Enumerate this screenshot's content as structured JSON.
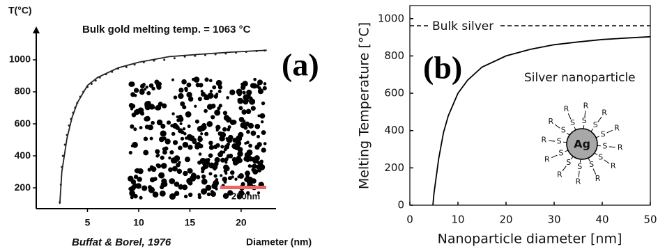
{
  "chart_data": [
    {
      "type": "scatter",
      "title": "Bulk gold melting temp. = 1063 °C",
      "panel_label": "(a)",
      "y_label": "T(°C)",
      "x_label": "Diameter (nm)",
      "source": "Buffat & Borel, 1976",
      "inset_scale": "200nm",
      "xlim": [
        0,
        23
      ],
      "xticks": [
        5,
        10,
        15,
        20
      ],
      "ylim": [
        70,
        1200
      ],
      "yticks": [
        200,
        400,
        600,
        800,
        1000
      ],
      "series": [
        {
          "type": "scatter",
          "color": "#222222",
          "x": [
            2.3,
            2.4,
            2.5,
            2.6,
            2.8,
            3.0,
            3.2,
            3.4,
            3.6,
            3.8,
            4.0,
            4.3,
            4.6,
            5.0,
            5.4,
            5.8,
            6.2,
            6.8,
            7.4,
            8.0,
            8.8,
            9.6,
            10.5,
            11.5,
            12.5,
            13.5,
            14.5,
            15.5,
            16.5,
            17.5,
            18.5,
            19.5,
            20.5,
            21.5,
            22.3
          ],
          "values": [
            110,
            220,
            330,
            400,
            470,
            530,
            590,
            630,
            670,
            700,
            730,
            770,
            800,
            830,
            850,
            870,
            890,
            910,
            925,
            945,
            955,
            970,
            985,
            995,
            1000,
            1010,
            1020,
            1025,
            1030,
            1035,
            1040,
            1045,
            1050,
            1055,
            1058
          ]
        },
        {
          "type": "line",
          "color": "#222222",
          "x": [
            2.3,
            2.5,
            3,
            3.5,
            4,
            5,
            6,
            8,
            10,
            13,
            16,
            19,
            22.5
          ],
          "values": [
            100,
            300,
            510,
            640,
            730,
            840,
            890,
            950,
            985,
            1020,
            1035,
            1048,
            1060
          ]
        }
      ]
    },
    {
      "type": "line",
      "panel_label": "(b)",
      "annotation": "Silver nanoparticle",
      "particle": "Ag",
      "ligand_sulfur": "S",
      "ligand_group": "R",
      "y_label": "Melting Temperature [°C]",
      "x_label": "Nanoparticle diameter [nm]",
      "xlim": [
        0,
        50
      ],
      "xticks": [
        0,
        10,
        20,
        30,
        40,
        50
      ],
      "ylim": [
        0,
        1070
      ],
      "yticks": [
        0,
        200,
        400,
        600,
        800,
        1000
      ],
      "reference_line": {
        "value": 962,
        "label": "Bulk silver"
      },
      "series": [
        {
          "color": "#000000",
          "x": [
            4.8,
            5,
            6,
            7,
            8,
            10,
            12,
            15,
            20,
            25,
            30,
            35,
            40,
            45,
            50
          ],
          "values": [
            0,
            60,
            250,
            390,
            480,
            600,
            670,
            740,
            800,
            835,
            860,
            875,
            888,
            896,
            903
          ]
        }
      ]
    }
  ]
}
